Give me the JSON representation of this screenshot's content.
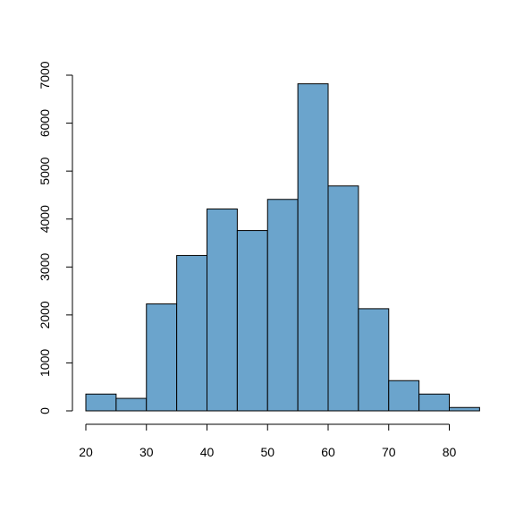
{
  "chart_data": {
    "type": "bar",
    "histogram": true,
    "bins": [
      {
        "start": 20,
        "end": 25,
        "count": 350
      },
      {
        "start": 25,
        "end": 30,
        "count": 260
      },
      {
        "start": 30,
        "end": 35,
        "count": 2230
      },
      {
        "start": 35,
        "end": 40,
        "count": 3240
      },
      {
        "start": 40,
        "end": 45,
        "count": 4210
      },
      {
        "start": 45,
        "end": 50,
        "count": 3760
      },
      {
        "start": 50,
        "end": 55,
        "count": 4410
      },
      {
        "start": 55,
        "end": 60,
        "count": 6820
      },
      {
        "start": 60,
        "end": 65,
        "count": 4690
      },
      {
        "start": 65,
        "end": 70,
        "count": 2130
      },
      {
        "start": 70,
        "end": 75,
        "count": 630
      },
      {
        "start": 75,
        "end": 80,
        "count": 350
      },
      {
        "start": 80,
        "end": 85,
        "count": 70
      }
    ],
    "title": "",
    "xlabel": "",
    "ylabel": "",
    "xlim": [
      20,
      85
    ],
    "ylim": [
      0,
      7000
    ],
    "x_ticks": [
      20,
      30,
      40,
      50,
      60,
      70,
      80
    ],
    "y_ticks": [
      0,
      1000,
      2000,
      3000,
      4000,
      5000,
      6000,
      7000
    ],
    "bar_color": "#6ba4cc",
    "grid": false
  }
}
